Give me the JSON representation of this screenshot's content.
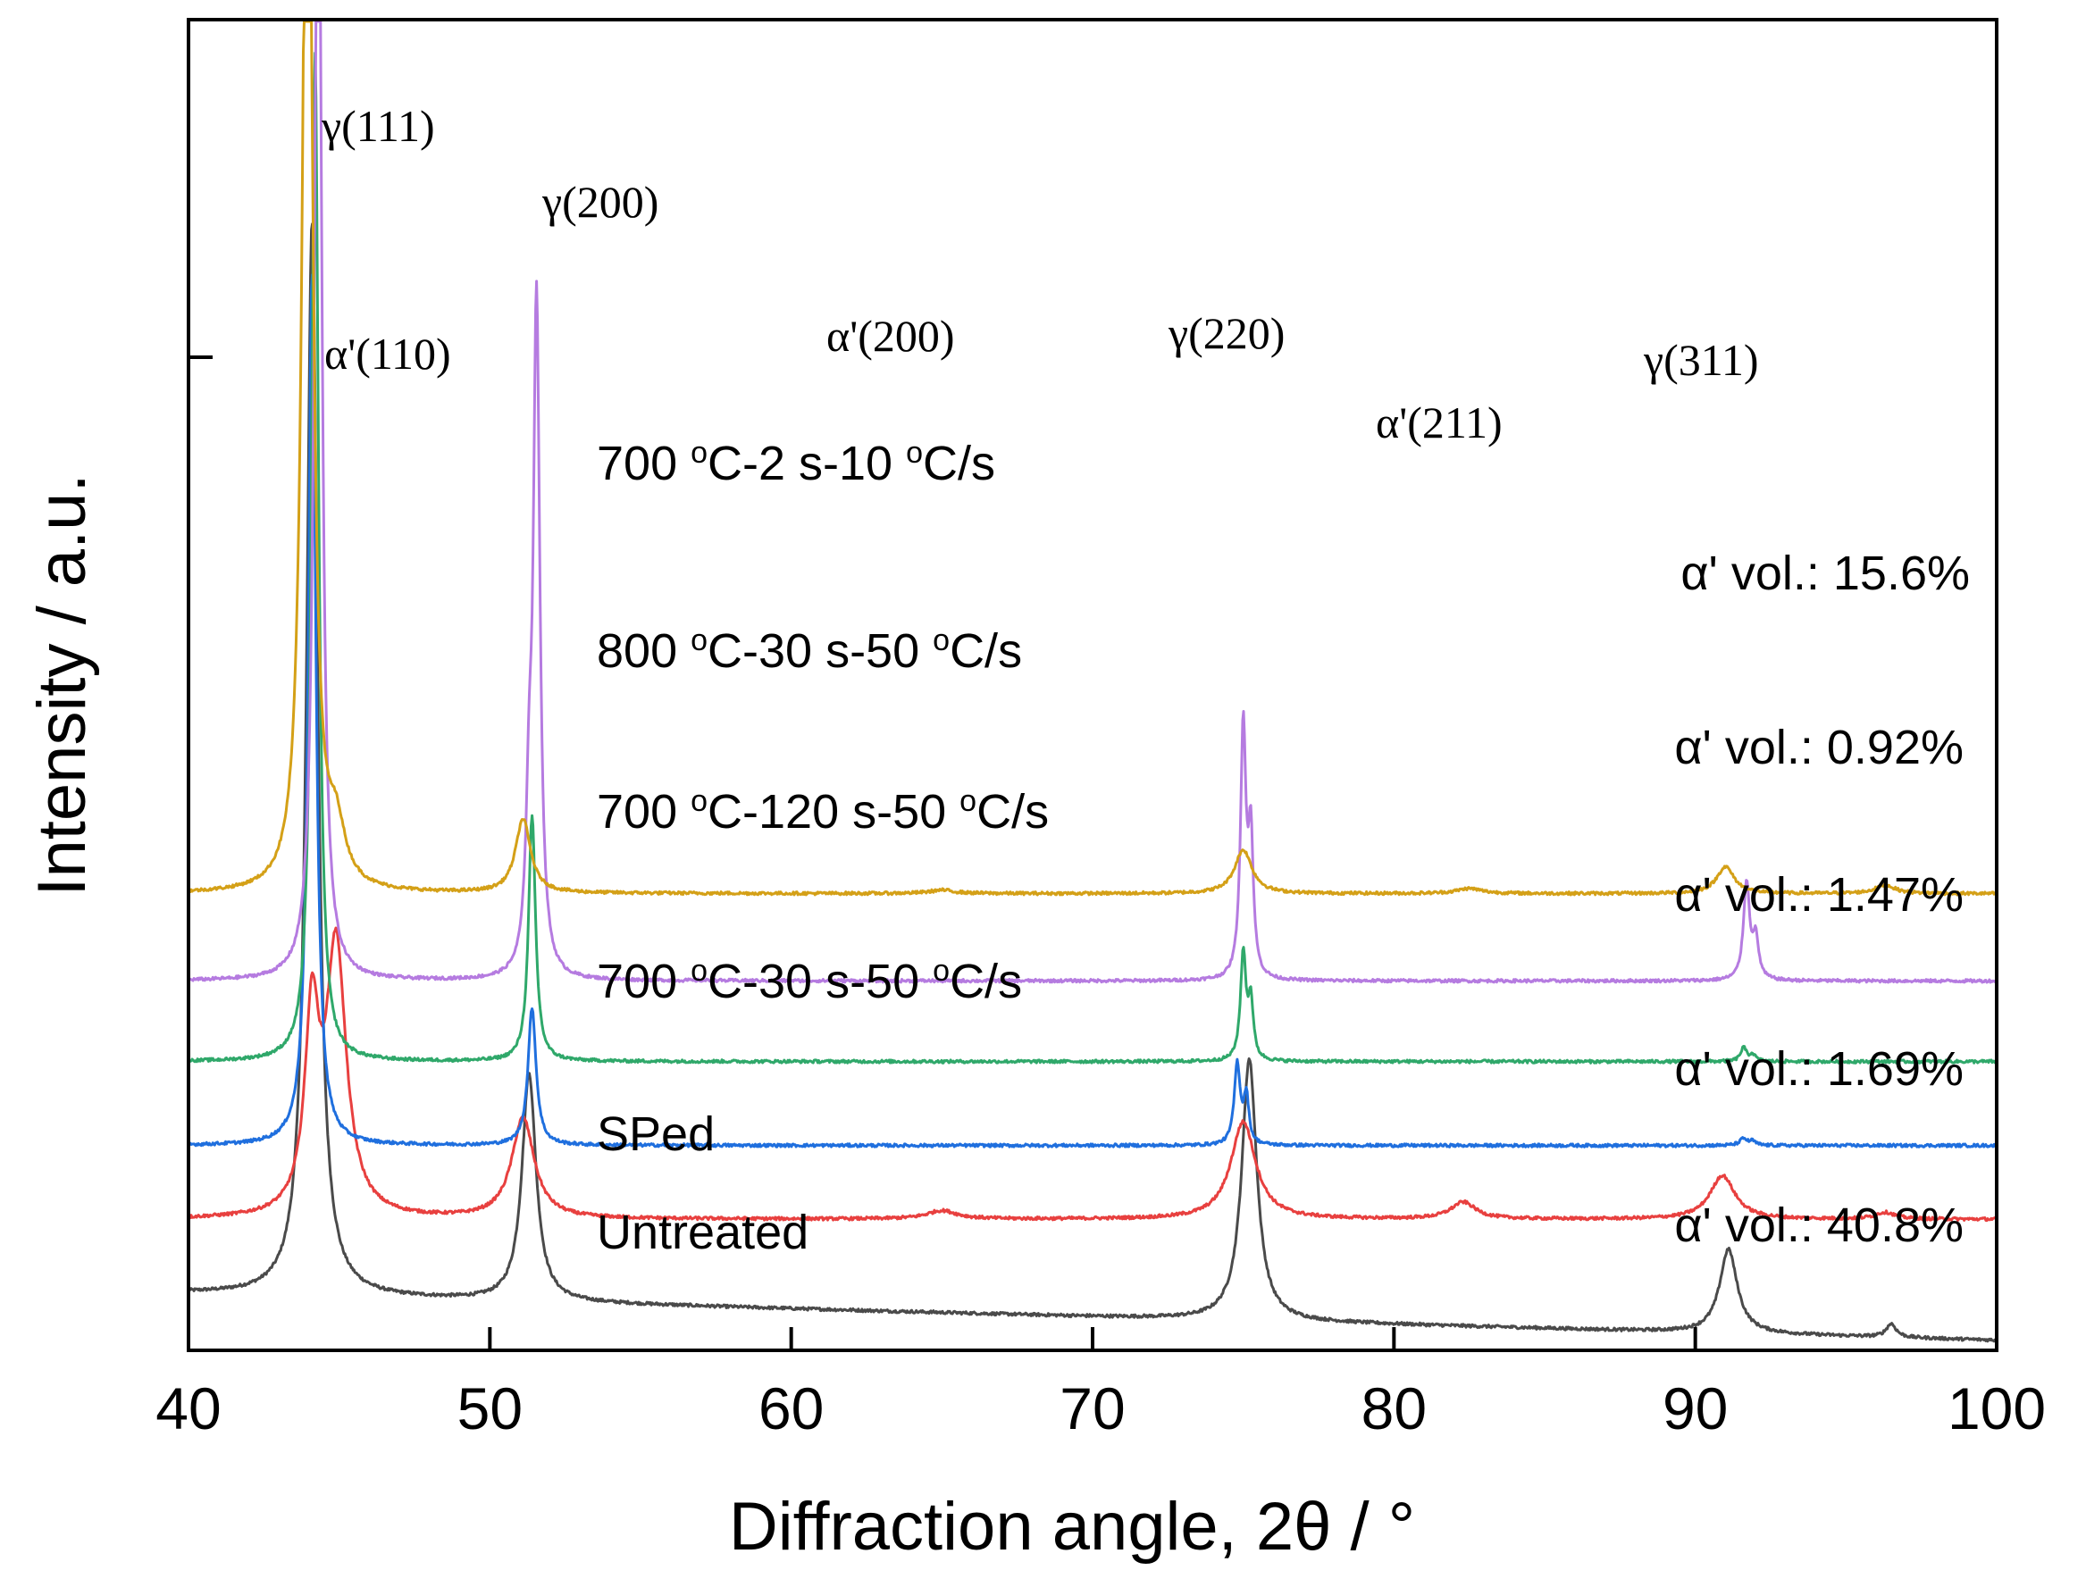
{
  "chart_data": {
    "type": "line",
    "title": "",
    "xlabel": "Diffraction angle, 2θ / °",
    "ylabel": "Intensity / a.u.",
    "xlim": [
      40,
      100
    ],
    "x_ticks": [
      40,
      50,
      60,
      70,
      80,
      90,
      100
    ],
    "x_tick_labels": [
      "40",
      "50",
      "60",
      "70",
      "80",
      "90",
      "100"
    ],
    "grid": false,
    "series": [
      {
        "name": "Untreated",
        "color": "#4a4a4a",
        "baseline": [
          [
            40,
            1.7
          ],
          [
            100,
            0.3
          ]
        ],
        "peaks": [
          {
            "x": 44.1,
            "h": 32,
            "w": 0.22
          },
          {
            "x": 51.3,
            "h": 6.8,
            "w": 0.28
          },
          {
            "x": 75.2,
            "h": 7.8,
            "w": 0.3
          },
          {
            "x": 91.1,
            "h": 2.5,
            "w": 0.35
          },
          {
            "x": 96.5,
            "h": 0.4,
            "w": 0.2
          }
        ]
      },
      {
        "name": "SPed",
        "color": "#e8403f",
        "baseline": [
          [
            40,
            3.9
          ],
          [
            100,
            3.9
          ]
        ],
        "peaks": [
          {
            "x": 44.1,
            "h": 5.7,
            "w": 0.28
          },
          {
            "x": 44.9,
            "h": 8.0,
            "w": 0.4
          },
          {
            "x": 51.1,
            "h": 3.0,
            "w": 0.45
          },
          {
            "x": 65.0,
            "h": 0.25,
            "w": 0.6
          },
          {
            "x": 75.0,
            "h": 2.9,
            "w": 0.5
          },
          {
            "x": 82.3,
            "h": 0.5,
            "w": 0.5
          },
          {
            "x": 90.9,
            "h": 1.3,
            "w": 0.5
          },
          {
            "x": 96.3,
            "h": 0.2,
            "w": 0.4
          }
        ]
      },
      {
        "name": "700 °C-30 s-50 °C/s",
        "color": "#1f6fde",
        "baseline": [
          [
            40,
            6.1
          ],
          [
            100,
            6.1
          ]
        ],
        "peaks": [
          {
            "x": 44.1,
            "h": 26,
            "w": 0.15
          },
          {
            "x": 51.4,
            "h": 4.1,
            "w": 0.16
          },
          {
            "x": 74.8,
            "h": 2.4,
            "w": 0.12
          },
          {
            "x": 75.1,
            "h": 1.4,
            "w": 0.1
          },
          {
            "x": 91.6,
            "h": 0.2,
            "w": 0.15
          },
          {
            "x": 91.9,
            "h": 0.12,
            "w": 0.12
          }
        ]
      },
      {
        "name": "700 °C-120 s-50 °C/s",
        "color": "#2fa86a",
        "baseline": [
          [
            40,
            8.6
          ],
          [
            100,
            8.6
          ]
        ],
        "peaks": [
          {
            "x": 44.2,
            "h": 30,
            "w": 0.14
          },
          {
            "x": 51.4,
            "h": 7.3,
            "w": 0.14
          },
          {
            "x": 75.0,
            "h": 3.2,
            "w": 0.11
          },
          {
            "x": 75.25,
            "h": 1.7,
            "w": 0.1
          },
          {
            "x": 91.6,
            "h": 0.4,
            "w": 0.12
          },
          {
            "x": 91.9,
            "h": 0.2,
            "w": 0.12
          }
        ]
      },
      {
        "name": "800 °C-30 s-50 °C/s",
        "color": "#b57be0",
        "baseline": [
          [
            40,
            11.0
          ],
          [
            100,
            11.0
          ]
        ],
        "peaks": [
          {
            "x": 44.3,
            "h": 38,
            "w": 0.14
          },
          {
            "x": 51.55,
            "h": 20.1,
            "w": 0.13
          },
          {
            "x": 51.3,
            "h": 4.0,
            "w": 0.12
          },
          {
            "x": 75.0,
            "h": 7.5,
            "w": 0.11
          },
          {
            "x": 75.25,
            "h": 4.0,
            "w": 0.1
          },
          {
            "x": 91.7,
            "h": 2.9,
            "w": 0.12
          },
          {
            "x": 92.0,
            "h": 1.2,
            "w": 0.12
          }
        ]
      },
      {
        "name": "700 °C-2 s-10 °C/s",
        "color": "#d4a017",
        "baseline": [
          [
            40,
            13.6
          ],
          [
            100,
            13.6
          ]
        ],
        "peaks": [
          {
            "x": 43.95,
            "h": 40,
            "w": 0.18
          },
          {
            "x": 44.9,
            "h": 1.6,
            "w": 0.35
          },
          {
            "x": 51.1,
            "h": 2.2,
            "w": 0.3
          },
          {
            "x": 65.0,
            "h": 0.1,
            "w": 0.5
          },
          {
            "x": 75.0,
            "h": 1.3,
            "w": 0.35
          },
          {
            "x": 82.5,
            "h": 0.15,
            "w": 0.5
          },
          {
            "x": 91.0,
            "h": 0.8,
            "w": 0.35
          },
          {
            "x": 96.3,
            "h": 0.25,
            "w": 0.4
          }
        ]
      }
    ],
    "series_labels": [
      {
        "prefix": "700 ",
        "sup1": "o",
        "mid": "C-2 s-10 ",
        "sup2": "o",
        "suffix": "C/s"
      },
      {
        "prefix": "800 ",
        "sup1": "o",
        "mid": "C-30 s-50 ",
        "sup2": "o",
        "suffix": "C/s"
      },
      {
        "prefix": "700 ",
        "sup1": "o",
        "mid": "C-120 s-50 ",
        "sup2": "o",
        "suffix": "C/s"
      },
      {
        "prefix": "700 ",
        "sup1": "o",
        "mid": "C-30 s-50 ",
        "sup2": "o",
        "suffix": "C/s"
      },
      {
        "text": "SPed"
      },
      {
        "text": "Untreated"
      }
    ],
    "volume_annotations": [
      "α' vol.: 15.6%",
      "α' vol.: 0.92%",
      "α' vol.: 1.47%",
      "α' vol.: 1.69%",
      "α' vol.: 40.8%"
    ],
    "peak_annotations": [
      {
        "label": "γ(111)",
        "x": 44.5
      },
      {
        "label": "γ(200)",
        "x": 51.7
      },
      {
        "label": "α'(110)",
        "x": 45.2
      },
      {
        "label": "α'(200)",
        "x": 64.9
      },
      {
        "label": "γ(220)",
        "x": 74.8
      },
      {
        "label": "α'(211)",
        "x": 82.4
      },
      {
        "label": "γ(311)",
        "x": 91.0
      }
    ]
  }
}
